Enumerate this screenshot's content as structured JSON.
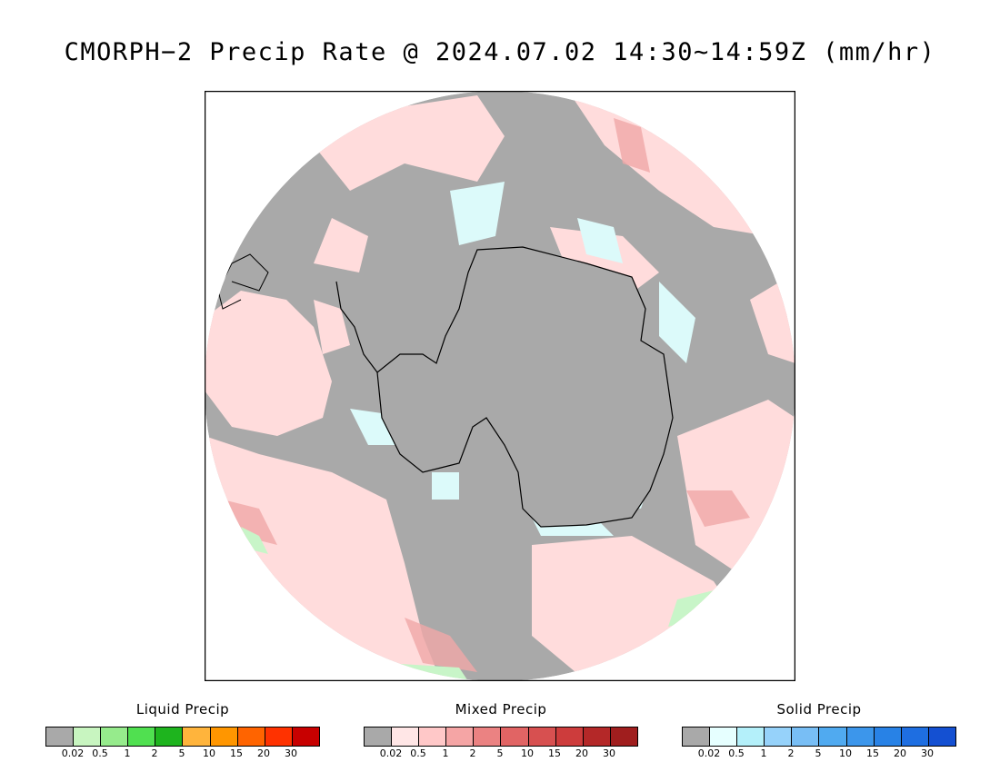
{
  "title": "CMORPH−2 Precip Rate @ 2024.07.02 14:30~14:59Z (mm/hr)",
  "colors": {
    "no_precip": "#a9a9a9",
    "liquid": "#c8f5c8",
    "mixed": "#ffdcdc",
    "mixed_heavy": "#f0a0a0",
    "solid": "#dcfafa",
    "coast": "#000000"
  },
  "legends": [
    {
      "title": "Liquid Precip",
      "colors": [
        "#a9a9a9",
        "#c8f5c0",
        "#96eb8c",
        "#50e050",
        "#1eb41e",
        "#ffb43c",
        "#ff9600",
        "#ff6400",
        "#ff3200",
        "#c80000"
      ],
      "ticks": [
        "0.02",
        "0.5",
        "1",
        "2",
        "5",
        "10",
        "15",
        "20",
        "30"
      ]
    },
    {
      "title": "Mixed Precip",
      "colors": [
        "#a9a9a9",
        "#ffe6e6",
        "#ffc8c8",
        "#f5a5a5",
        "#eb8282",
        "#e16464",
        "#d75050",
        "#cd3c3c",
        "#b42828",
        "#a01e1e"
      ],
      "ticks": [
        "0.02",
        "0.5",
        "1",
        "2",
        "5",
        "10",
        "15",
        "20",
        "30"
      ]
    },
    {
      "title": "Solid Precip",
      "colors": [
        "#a9a9a9",
        "#e6ffff",
        "#b4f0fa",
        "#96d2fa",
        "#78bef5",
        "#50aaf0",
        "#3c96eb",
        "#2882e6",
        "#1e6ee1",
        "#1450d2"
      ],
      "ticks": [
        "0.02",
        "0.5",
        "1",
        "2",
        "5",
        "10",
        "15",
        "20",
        "30"
      ]
    }
  ]
}
